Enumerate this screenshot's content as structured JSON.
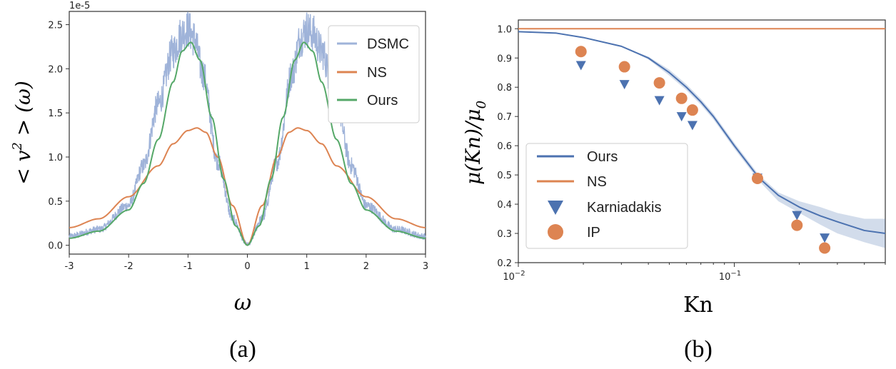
{
  "chart_data": [
    {
      "panel": "(a)",
      "type": "line",
      "xlabel": "ω",
      "ylabel": "< v² > (ω)",
      "ylabel_main": "< v",
      "ylabel_sup": "2",
      "ylabel_tail": " > (ω)",
      "xlim": [
        -3,
        3
      ],
      "ylim": [
        -0.1,
        2.65
      ],
      "y_multiplier": "1e-5",
      "xticks": [
        -3,
        -2,
        -1,
        0,
        1,
        2,
        3
      ],
      "yticks": [
        0.0,
        0.5,
        1.0,
        1.5,
        2.0,
        2.5
      ],
      "xtick_labels": [
        "-3",
        "-2",
        "-1",
        "0",
        "1",
        "2",
        "3"
      ],
      "ytick_labels": [
        "0.0",
        "0.5",
        "1.0",
        "1.5",
        "2.0",
        "2.5"
      ],
      "legend_position": "top-right",
      "series": [
        {
          "name": "DSMC",
          "color": "#9fb3d9",
          "style": "noisy",
          "x": [
            -3,
            -2.5,
            -2,
            -1.75,
            -1.5,
            -1.25,
            -1.1,
            -1.0,
            -0.9,
            -0.75,
            -0.5,
            -0.25,
            0,
            0.25,
            0.5,
            0.75,
            0.9,
            1.0,
            1.1,
            1.25,
            1.5,
            1.75,
            2,
            2.5,
            3
          ],
          "y": [
            0.1,
            0.18,
            0.45,
            0.9,
            1.6,
            2.2,
            2.4,
            2.45,
            2.35,
            1.95,
            0.95,
            0.3,
            0.0,
            0.3,
            0.95,
            1.95,
            2.35,
            2.45,
            2.4,
            2.2,
            1.6,
            0.9,
            0.45,
            0.18,
            0.1
          ]
        },
        {
          "name": "NS",
          "color": "#dd8452",
          "style": "line",
          "x": [
            -3,
            -2.5,
            -2,
            -1.5,
            -1.25,
            -1.0,
            -0.85,
            -0.7,
            -0.5,
            -0.25,
            0,
            0.25,
            0.5,
            0.7,
            0.85,
            1.0,
            1.25,
            1.5,
            2,
            2.5,
            3
          ],
          "y": [
            0.2,
            0.3,
            0.55,
            0.9,
            1.15,
            1.3,
            1.33,
            1.28,
            1.0,
            0.45,
            0.0,
            0.45,
            1.0,
            1.28,
            1.33,
            1.3,
            1.15,
            0.9,
            0.55,
            0.3,
            0.2
          ]
        },
        {
          "name": "Ours",
          "color": "#55a868",
          "style": "line",
          "x": [
            -3,
            -2.5,
            -2,
            -1.75,
            -1.5,
            -1.25,
            -1.1,
            -0.95,
            -0.8,
            -0.6,
            -0.4,
            -0.2,
            0,
            0.2,
            0.4,
            0.6,
            0.8,
            0.95,
            1.1,
            1.25,
            1.5,
            1.75,
            2,
            2.5,
            3
          ],
          "y": [
            0.08,
            0.16,
            0.4,
            0.7,
            1.2,
            1.85,
            2.2,
            2.3,
            2.1,
            1.45,
            0.75,
            0.22,
            0.0,
            0.22,
            0.75,
            1.45,
            2.1,
            2.3,
            2.2,
            1.85,
            1.2,
            0.7,
            0.4,
            0.16,
            0.08
          ]
        }
      ]
    },
    {
      "panel": "(b)",
      "type": "line",
      "xlabel": "Kn",
      "ylabel": "μ(Kn)/μ0",
      "ylabel_main": "μ(Kn)/μ",
      "ylabel_sub": "0",
      "xscale": "log",
      "xlim": [
        0.01,
        0.5
      ],
      "ylim": [
        0.2,
        1.03
      ],
      "xtick_labels": [
        {
          "base": "10",
          "exp": "−2",
          "value": 0.01
        },
        {
          "base": "10",
          "exp": "−1",
          "value": 0.1
        }
      ],
      "yticks": [
        0.2,
        0.3,
        0.4,
        0.5,
        0.6,
        0.7,
        0.8,
        0.9,
        1.0
      ],
      "ytick_labels": [
        "0.2",
        "0.3",
        "0.4",
        "0.5",
        "0.6",
        "0.7",
        "0.8",
        "0.9",
        "1.0"
      ],
      "legend_position": "bottom-left",
      "series": [
        {
          "name": "Ours",
          "color": "#4c72b0",
          "style": "line-band",
          "x": [
            0.01,
            0.015,
            0.02,
            0.03,
            0.04,
            0.05,
            0.06,
            0.07,
            0.08,
            0.1,
            0.13,
            0.16,
            0.2,
            0.25,
            0.3,
            0.4,
            0.5
          ],
          "y": [
            0.99,
            0.985,
            0.97,
            0.94,
            0.9,
            0.85,
            0.8,
            0.75,
            0.7,
            0.6,
            0.49,
            0.43,
            0.39,
            0.36,
            0.34,
            0.31,
            0.3
          ],
          "band_low": [
            0.99,
            0.985,
            0.97,
            0.94,
            0.895,
            0.84,
            0.79,
            0.74,
            0.69,
            0.59,
            0.48,
            0.41,
            0.37,
            0.33,
            0.3,
            0.27,
            0.25
          ],
          "band_high": [
            0.99,
            0.985,
            0.97,
            0.94,
            0.905,
            0.86,
            0.81,
            0.76,
            0.71,
            0.61,
            0.5,
            0.44,
            0.41,
            0.39,
            0.37,
            0.35,
            0.35
          ]
        },
        {
          "name": "NS",
          "color": "#dd8452",
          "style": "line",
          "x": [
            0.01,
            0.5
          ],
          "y": [
            1.0,
            1.0
          ]
        },
        {
          "name": "Karniadakis",
          "color": "#4c72b0",
          "style": "triangle",
          "x": [
            0.0195,
            0.031,
            0.045,
            0.057,
            0.064,
            0.128,
            0.195,
            0.262
          ],
          "y": [
            0.875,
            0.81,
            0.755,
            0.7,
            0.67,
            0.49,
            0.362,
            0.285
          ]
        },
        {
          "name": "IP",
          "color": "#dd8452",
          "style": "circle",
          "x": [
            0.0195,
            0.031,
            0.045,
            0.057,
            0.064,
            0.128,
            0.195,
            0.262
          ],
          "y": [
            0.922,
            0.87,
            0.815,
            0.762,
            0.722,
            0.488,
            0.328,
            0.25
          ]
        }
      ]
    }
  ]
}
